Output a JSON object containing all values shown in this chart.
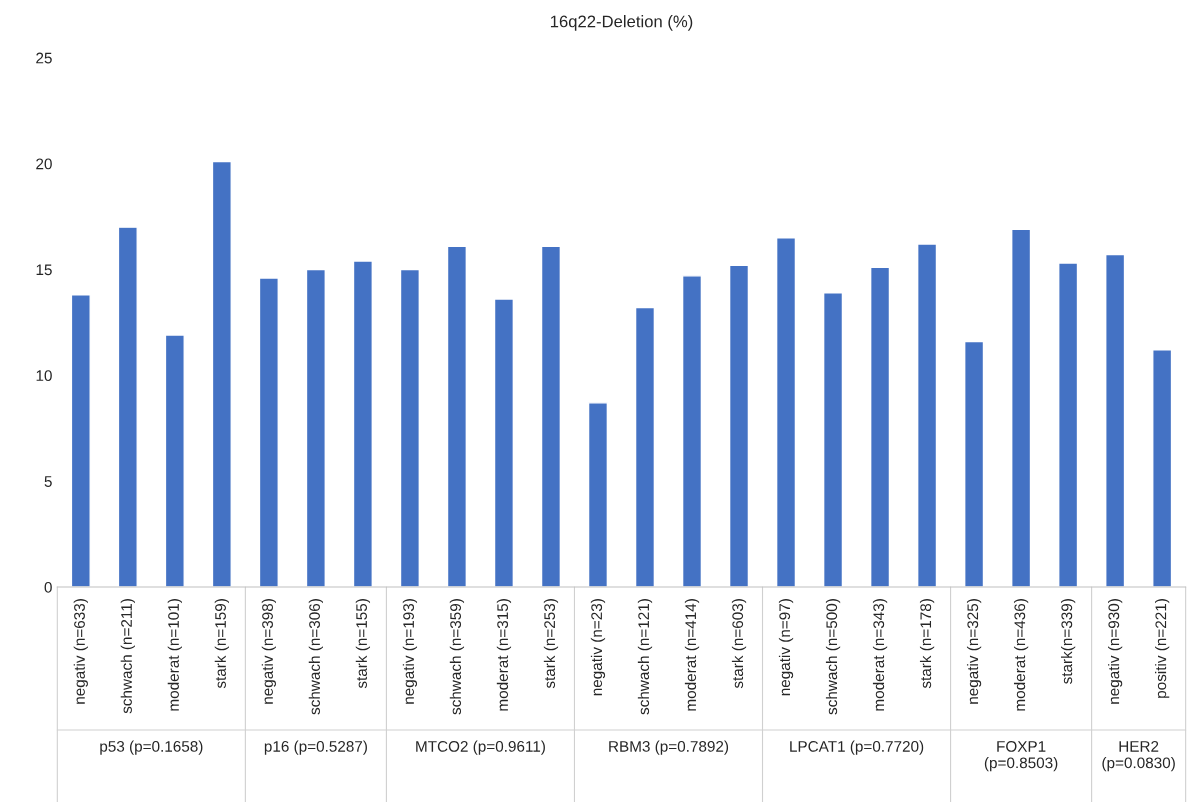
{
  "chart_data": {
    "type": "bar",
    "title": "16q22-Deletion (%)",
    "categories": [
      "negativ (n=633)",
      "schwach (n=211)",
      "moderat (n=101)",
      "stark (n=159)",
      "negativ (n=398)",
      "schwach (n=306)",
      "stark (n=155)",
      "negativ (n=193)",
      "schwach (n=359)",
      "moderat (n=315)",
      "stark (n=253)",
      "negativ (n=23)",
      "schwach (n=121)",
      "moderat (n=414)",
      "stark (n=603)",
      "negativ (n=97)",
      "schwach (n=500)",
      "moderat (n=343)",
      "stark (n=178)",
      "negativ (n=325)",
      "moderat (n=436)",
      "stark(n=339)",
      "negativ (n=930)",
      "positiv (n=221)"
    ],
    "values": [
      13.8,
      17.0,
      11.9,
      20.1,
      14.6,
      15.0,
      15.4,
      15.0,
      16.1,
      13.6,
      16.1,
      8.7,
      13.2,
      14.7,
      15.2,
      16.5,
      13.9,
      15.1,
      16.2,
      11.6,
      16.9,
      15.3,
      15.7,
      11.2
    ],
    "color": "#4472c4",
    "ylim": [
      0,
      25
    ],
    "yticks": [
      0,
      5,
      10,
      15,
      20,
      25
    ],
    "grid": false,
    "legend": false,
    "annotations": [
      "p53 (p=0.1658)",
      "p16 (p=0.5287)",
      "MTCO2 (p=0.9611)",
      "RBM3 (p=0.7892)",
      "LPCAT1 (p=0.7720)",
      "FOXP1\n(p=0.8503)",
      "HER2\n(p=0.0830)"
    ]
  }
}
